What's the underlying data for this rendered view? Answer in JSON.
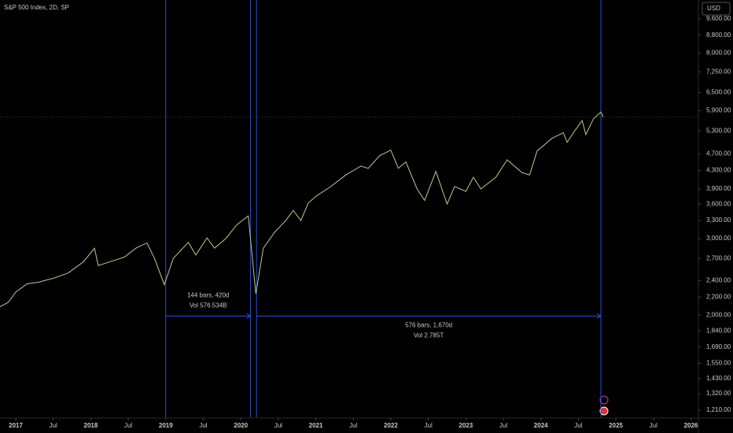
{
  "chart_data": {
    "type": "line",
    "title": "S&P 500 Index, 2D, SP",
    "currency": "USD",
    "log_scale": true,
    "grid": false,
    "background": "#000000",
    "xlim": [
      2016.79,
      2026.1
    ],
    "ylim": [
      1165,
      10600
    ],
    "x": [
      2016.79,
      2016.9,
      2017.0,
      2017.15,
      2017.3,
      2017.5,
      2017.7,
      2017.9,
      2018.05,
      2018.1,
      2018.25,
      2018.45,
      2018.6,
      2018.75,
      2018.85,
      2018.98,
      2019.1,
      2019.3,
      2019.4,
      2019.55,
      2019.65,
      2019.8,
      2019.95,
      2020.1,
      2020.2,
      2020.3,
      2020.45,
      2020.6,
      2020.7,
      2020.8,
      2020.9,
      2021.0,
      2021.2,
      2021.4,
      2021.6,
      2021.7,
      2021.85,
      2022.0,
      2022.1,
      2022.2,
      2022.35,
      2022.45,
      2022.6,
      2022.75,
      2022.85,
      2023.0,
      2023.1,
      2023.2,
      2023.4,
      2023.55,
      2023.75,
      2023.85,
      2023.95,
      2024.15,
      2024.3,
      2024.35,
      2024.45,
      2024.55,
      2024.6,
      2024.7,
      2024.8,
      2024.83
    ],
    "series": [
      {
        "color": "#b9c98c",
        "values": [
          2090,
          2140,
          2260,
          2360,
          2380,
          2430,
          2500,
          2650,
          2850,
          2600,
          2650,
          2720,
          2850,
          2930,
          2700,
          2350,
          2700,
          2940,
          2750,
          3010,
          2850,
          3000,
          3230,
          3380,
          2240,
          2850,
          3100,
          3300,
          3480,
          3300,
          3620,
          3750,
          3950,
          4200,
          4400,
          4350,
          4650,
          4790,
          4350,
          4500,
          3900,
          3670,
          4280,
          3600,
          3950,
          3850,
          4150,
          3900,
          4150,
          4550,
          4250,
          4200,
          4770,
          5100,
          5250,
          4990,
          5300,
          5600,
          5200,
          5650,
          5860,
          5710
        ]
      }
    ],
    "last_price": 5706,
    "measures": [
      {
        "start": 2019.0,
        "end": 2020.13,
        "price": 1990,
        "label": "144 bars, 420d",
        "volume": "Vol 576.534B"
      },
      {
        "start": 2020.21,
        "end": 2024.8,
        "price": 1990,
        "label": "576 bars, 1,670d",
        "volume": "Vol 2.785T"
      }
    ],
    "yticks": [
      {
        "value": 9600,
        "label": "9,600.00"
      },
      {
        "value": 8800,
        "label": "8,800.00"
      },
      {
        "value": 8000,
        "label": "8,000.00"
      },
      {
        "value": 7250,
        "label": "7,250.00"
      },
      {
        "value": 6500,
        "label": "6,500.00"
      },
      {
        "value": 5900,
        "label": "5,900.00"
      },
      {
        "value": 5300,
        "label": "5,300.00"
      },
      {
        "value": 4700,
        "label": "4,700.00"
      },
      {
        "value": 4300,
        "label": "4,300.00"
      },
      {
        "value": 3900,
        "label": "3,900.00"
      },
      {
        "value": 3600,
        "label": "3,600.00"
      },
      {
        "value": 3300,
        "label": "3,300.00"
      },
      {
        "value": 3000,
        "label": "3,000.00"
      },
      {
        "value": 2700,
        "label": "2,700.00"
      },
      {
        "value": 2400,
        "label": "2,400.00"
      },
      {
        "value": 2200,
        "label": "2,200.00"
      },
      {
        "value": 2000,
        "label": "2,000.00"
      },
      {
        "value": 1840,
        "label": "1,840.00"
      },
      {
        "value": 1690,
        "label": "1,690.00"
      },
      {
        "value": 1550,
        "label": "1,550.00"
      },
      {
        "value": 1430,
        "label": "1,430.00"
      },
      {
        "value": 1320,
        "label": "1,320.00"
      },
      {
        "value": 1210,
        "label": "1,210.00"
      }
    ],
    "xticks": [
      2017,
      {
        "value": 2017.5,
        "label": "Jul"
      },
      2018,
      {
        "value": 2018.5,
        "label": "Jul"
      },
      2019,
      {
        "value": 2019.5,
        "label": "Jul"
      },
      2020,
      {
        "value": 2020.5,
        "label": "Jul"
      },
      2021,
      {
        "value": 2021.5,
        "label": "Jul"
      },
      2022,
      {
        "value": 2022.5,
        "label": "Jul"
      },
      2023,
      {
        "value": 2023.5,
        "label": "Jul"
      },
      2024,
      {
        "value": 2024.5,
        "label": "Jul"
      },
      2025,
      {
        "value": 2025.5,
        "label": "Jul"
      },
      2026
    ]
  }
}
